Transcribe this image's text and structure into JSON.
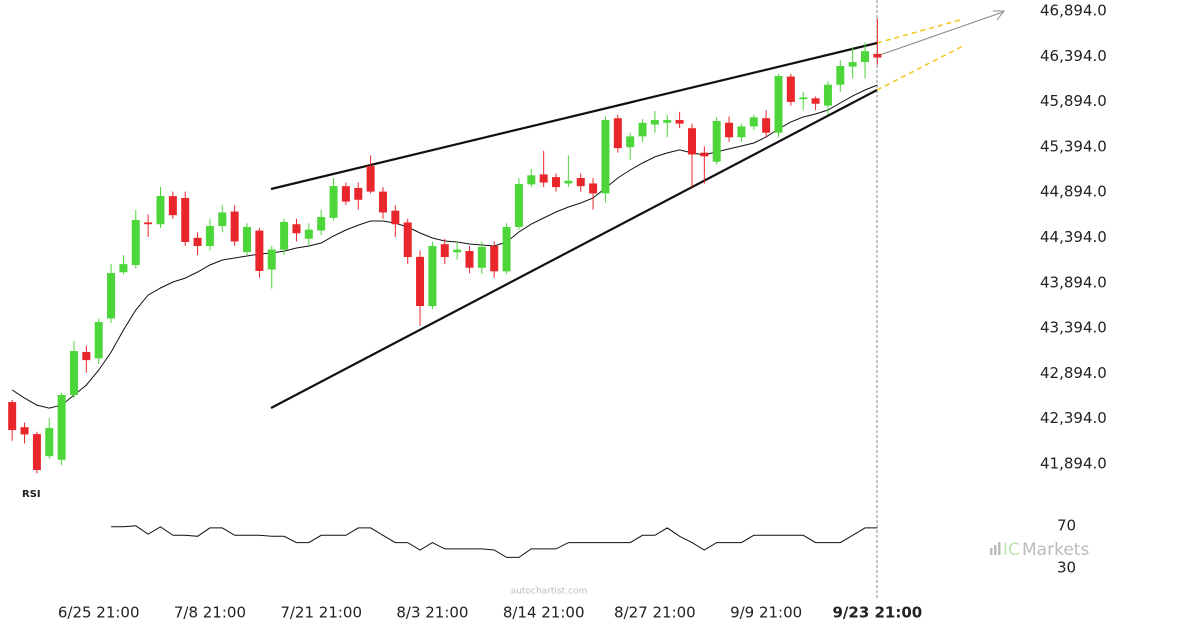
{
  "chart_data": {
    "type": "candlestick",
    "categories": [
      null,
      null,
      null,
      null,
      null,
      null,
      null,
      "6/25 21:00",
      null,
      null,
      null,
      null,
      null,
      null,
      null,
      null,
      "7/8 21:00",
      null,
      null,
      null,
      null,
      null,
      null,
      null,
      null,
      "7/21 21:00",
      null,
      null,
      null,
      null,
      null,
      null,
      null,
      null,
      "8/3 21:00",
      null,
      null,
      null,
      null,
      null,
      null,
      null,
      null,
      "8/14 21:00",
      null,
      null,
      null,
      null,
      null,
      null,
      null,
      null,
      "8/27 21:00",
      null,
      null,
      null,
      null,
      null,
      null,
      null,
      null,
      "9/9 21:00",
      null,
      null,
      null,
      null,
      null,
      null,
      null,
      null,
      "9/23 21:00"
    ],
    "open": [
      42577,
      42300,
      42224,
      41980,
      41940,
      42655,
      43130,
      43060,
      43500,
      44010,
      44090,
      44560,
      44540,
      44850,
      44830,
      44390,
      44300,
      44520,
      44680,
      44233,
      44470,
      44040,
      44260,
      44540,
      44380,
      44470,
      44610,
      44960,
      44940,
      45183,
      44900,
      44690,
      44560,
      44180,
      43637,
      44320,
      44230,
      44245,
      44060,
      44300,
      44020,
      44510,
      44980,
      45090,
      45060,
      44990,
      45050,
      44990,
      44880,
      45710,
      45390,
      45510,
      45640,
      45660,
      45690,
      45600,
      45330,
      45230,
      45660,
      45500,
      45620,
      45710,
      45550,
      46170,
      45920,
      45930,
      45850,
      46080,
      46280,
      46330,
      46420
    ],
    "high": [
      42600,
      42350,
      42250,
      42400,
      42680,
      43250,
      43200,
      43500,
      44100,
      44200,
      44700,
      44650,
      44950,
      44900,
      44900,
      44450,
      44600,
      44750,
      44750,
      44550,
      44500,
      44300,
      44600,
      44600,
      44550,
      44700,
      45050,
      45000,
      45000,
      45300,
      44950,
      44750,
      44600,
      44250,
      44350,
      44380,
      44350,
      44300,
      44350,
      44350,
      44550,
      45050,
      45150,
      45350,
      45100,
      45300,
      45100,
      45050,
      45730,
      45750,
      45550,
      45700,
      45790,
      45750,
      45780,
      45650,
      45400,
      45720,
      45730,
      45650,
      45750,
      45800,
      46200,
      46200,
      46000,
      45950,
      46120,
      46350,
      46500,
      46550,
      46814
    ],
    "low": [
      42150,
      42120,
      41790,
      41950,
      41880,
      42620,
      42900,
      43000,
      43450,
      43990,
      44050,
      44400,
      44500,
      44600,
      44300,
      44200,
      44250,
      44450,
      44300,
      44200,
      43950,
      43830,
      44200,
      44350,
      44300,
      44420,
      44580,
      44750,
      44700,
      44880,
      44600,
      44400,
      44100,
      43420,
      43600,
      44100,
      44150,
      44000,
      43990,
      43950,
      43990,
      44480,
      44950,
      44950,
      44900,
      44950,
      44900,
      44700,
      44780,
      45330,
      45250,
      45450,
      45550,
      45500,
      45600,
      44950,
      44990,
      45200,
      45450,
      45450,
      45580,
      45500,
      45500,
      45850,
      45800,
      45800,
      45750,
      46000,
      46150,
      46150,
      46300
    ],
    "close": [
      42268,
      42220,
      41827,
      42290,
      42655,
      43140,
      43040,
      43460,
      44001,
      44100,
      44587,
      44540,
      44852,
      44640,
      44344,
      44300,
      44520,
      44670,
      44350,
      44510,
      44024,
      44260,
      44565,
      44440,
      44480,
      44620,
      44962,
      44790,
      44810,
      44900,
      44670,
      44540,
      44178,
      43637,
      44300,
      44178,
      44260,
      44060,
      44290,
      44020,
      44510,
      44984,
      45080,
      45000,
      44950,
      45020,
      44960,
      44880,
      45691,
      45380,
      45510,
      45660,
      45690,
      45690,
      45650,
      45310,
      45290,
      45680,
      45500,
      45620,
      45720,
      45550,
      46176,
      45890,
      45940,
      45870,
      46080,
      46287,
      46330,
      46450,
      46380
    ],
    "up_color": "#4cd63a",
    "down_color": "#e8262b",
    "ma": [
      42710,
      42621,
      42544,
      42511,
      42544,
      42654,
      42765,
      42930,
      43129,
      43372,
      43593,
      43758,
      43836,
      43902,
      43946,
      44013,
      44090,
      44145,
      44167,
      44189,
      44211,
      44222,
      44244,
      44278,
      44300,
      44333,
      44410,
      44476,
      44531,
      44576,
      44576,
      44553,
      44509,
      44443,
      44388,
      44355,
      44344,
      44322,
      44311,
      44300,
      44344,
      44454,
      44542,
      44609,
      44675,
      44730,
      44774,
      44830,
      44940,
      45050,
      45139,
      45216,
      45283,
      45327,
      45360,
      45327,
      45305,
      45338,
      45371,
      45404,
      45437,
      45503,
      45591,
      45669,
      45724,
      45757,
      45801,
      45878,
      45956,
      46022,
      46077
    ],
    "ylim": [
      41717,
      47015
    ],
    "yticks": [
      {
        "value": 41894,
        "label": "41,894.0"
      },
      {
        "value": 42394,
        "label": "42,394.0"
      },
      {
        "value": 42894,
        "label": "42,894.0"
      },
      {
        "value": 43394,
        "label": "43,394.0"
      },
      {
        "value": 43894,
        "label": "43,894.0"
      },
      {
        "value": 44394,
        "label": "44,394.0"
      },
      {
        "value": 44894,
        "label": "44,894.0"
      },
      {
        "value": 45394,
        "label": "45,394.0"
      },
      {
        "value": 45894,
        "label": "45,894.0"
      },
      {
        "value": 46394,
        "label": "46,394.0"
      },
      {
        "value": 46894,
        "label": "46,894.0"
      }
    ],
    "rsi_label": "RSI",
    "rsi": [
      null,
      null,
      null,
      null,
      null,
      null,
      null,
      null,
      69,
      69,
      70,
      62,
      69,
      61,
      61,
      60,
      68,
      68,
      61,
      61,
      61,
      60,
      60,
      54,
      54,
      61,
      61,
      61,
      68,
      68,
      61,
      54,
      54,
      47,
      54,
      48,
      48,
      48,
      48,
      47,
      40,
      40,
      48,
      48,
      48,
      54,
      54,
      54,
      54,
      54,
      54,
      61,
      61,
      68,
      60,
      54,
      47,
      54,
      54,
      54,
      61,
      61,
      61,
      61,
      61,
      54,
      54,
      54,
      61,
      68,
      68
    ],
    "rsi_ylim": [
      9,
      85
    ],
    "rsi_ticks": [
      70,
      30
    ],
    "watermark": "autochartist.com",
    "logo": [
      "IC",
      "Markets"
    ]
  }
}
